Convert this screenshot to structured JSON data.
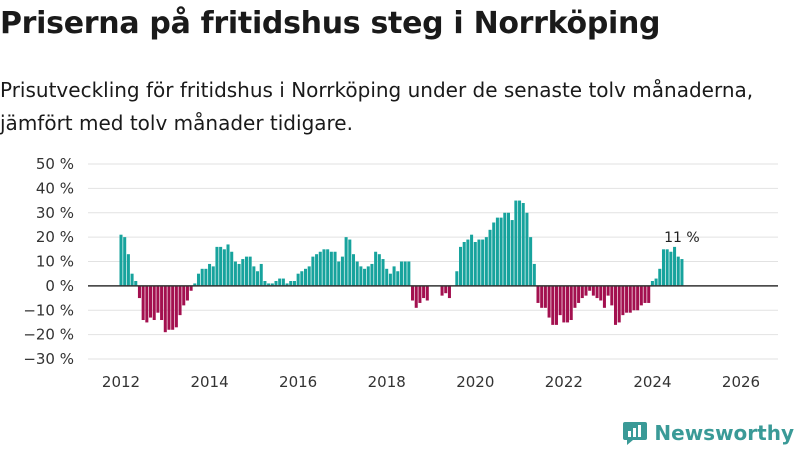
{
  "title": "Priserna på fritidshus steg i Norrköping",
  "subtitle": "Prisutveckling för fritidshus i Norrköping under de senaste tolv månaderna, jämfört med tolv månader tidigare.",
  "brand": {
    "name": "Newsworthy",
    "color": "#3a9a97"
  },
  "colors": {
    "positive": "#17a39d",
    "negative": "#a3104f",
    "grid": "#e2e2e2",
    "zero_line": "#333333",
    "text": "#333333"
  },
  "logo_icon": "newsworthy-logo-icon",
  "chart_data": {
    "type": "bar",
    "title": "Priserna på fritidshus steg i Norrköping",
    "xlabel": "",
    "ylabel": "",
    "ylim": [
      -30,
      50
    ],
    "y_ticks": [
      -30,
      -20,
      -10,
      0,
      10,
      20,
      30,
      40,
      50
    ],
    "y_tick_labels": [
      "−30 %",
      "−20 %",
      "−10 %",
      "0 %",
      "10 %",
      "20 %",
      "30 %",
      "40 %",
      "50 %"
    ],
    "x_ticks": [
      2012,
      2014,
      2016,
      2018,
      2020,
      2022,
      2024,
      2026
    ],
    "x_tick_labels": [
      "2012",
      "2014",
      "2016",
      "2018",
      "2020",
      "2022",
      "2024",
      "2026"
    ],
    "x_start": 2012.0,
    "step": 0.08333,
    "values": [
      21,
      20,
      13,
      5,
      2,
      -5,
      -14,
      -15,
      -13,
      -14,
      -11,
      -14,
      -19,
      -18,
      -18,
      -17,
      -12,
      -8,
      -6,
      -2,
      1,
      5,
      7,
      7,
      9,
      8,
      16,
      16,
      15,
      17,
      14,
      10,
      9,
      11,
      12,
      12,
      8,
      6,
      9,
      2,
      1,
      1,
      2,
      3,
      3,
      1,
      2,
      2,
      5,
      6,
      7,
      8,
      12,
      13,
      14,
      15,
      15,
      14,
      14,
      10,
      12,
      20,
      19,
      13,
      10,
      8,
      7,
      8,
      9,
      14,
      13,
      11,
      7,
      5,
      8,
      6,
      10,
      10,
      10,
      -6,
      -9,
      -7,
      -5,
      -6,
      0,
      0,
      0,
      -4,
      -3,
      -5,
      0,
      6,
      16,
      18,
      19,
      21,
      18,
      19,
      19,
      20,
      23,
      26,
      28,
      28,
      30,
      30,
      27,
      35,
      35,
      34,
      30,
      20,
      9,
      -7,
      -9,
      -9,
      -13,
      -16,
      -16,
      -12,
      -15,
      -15,
      -14,
      -9,
      -7,
      -5,
      -4,
      -2,
      -4,
      -5,
      -6,
      -9,
      -4,
      -8,
      -16,
      -15,
      -12,
      -11,
      -11,
      -10,
      -10,
      -8,
      -7,
      -7,
      2,
      3,
      7,
      15,
      15,
      14,
      16,
      12,
      11
    ],
    "annotation": {
      "text": "11 %",
      "target": "last"
    }
  }
}
